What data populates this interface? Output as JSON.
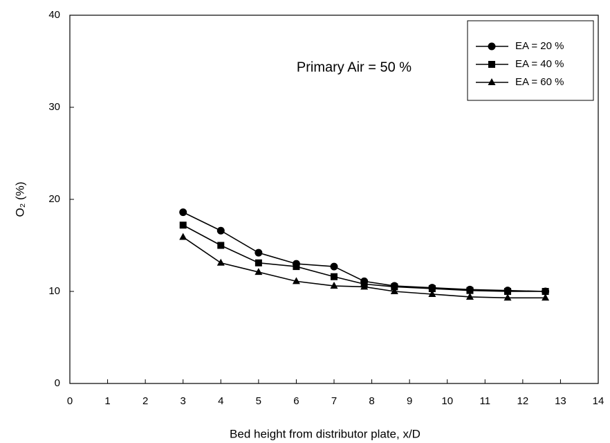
{
  "chart_data": {
    "type": "line",
    "annotation": "Primary Air = 50 %",
    "x_label": "Bed height from distributor plate, x/D",
    "y_label": "O₂ (%)",
    "x": [
      3,
      4,
      5,
      6,
      7,
      7.8,
      8.6,
      9.6,
      10.6,
      11.6,
      12.6
    ],
    "series": [
      {
        "name": "EA = 20 %",
        "color": "#000000",
        "marker": "circle",
        "values": [
          18.6,
          16.6,
          14.2,
          13.0,
          12.7,
          11.1,
          10.6,
          10.4,
          10.2,
          10.1,
          10.0
        ]
      },
      {
        "name": "EA = 40 %",
        "color": "#000000",
        "marker": "square",
        "values": [
          17.2,
          15.0,
          13.1,
          12.7,
          11.6,
          10.8,
          10.5,
          10.3,
          10.1,
          10.0,
          10.0
        ]
      },
      {
        "name": "EA = 60 %",
        "color": "#000000",
        "marker": "triangle",
        "values": [
          15.9,
          13.1,
          12.1,
          11.1,
          10.6,
          10.5,
          10.0,
          9.7,
          9.4,
          9.3,
          9.3
        ]
      }
    ],
    "xlim": [
      0,
      14
    ],
    "xticks": [
      0,
      1,
      2,
      3,
      4,
      5,
      6,
      7,
      8,
      9,
      10,
      11,
      12,
      13,
      14
    ],
    "ylim": [
      0,
      40
    ],
    "yticks": [
      0,
      10,
      20,
      30,
      40
    ],
    "legend": "upper right",
    "grid": false
  }
}
